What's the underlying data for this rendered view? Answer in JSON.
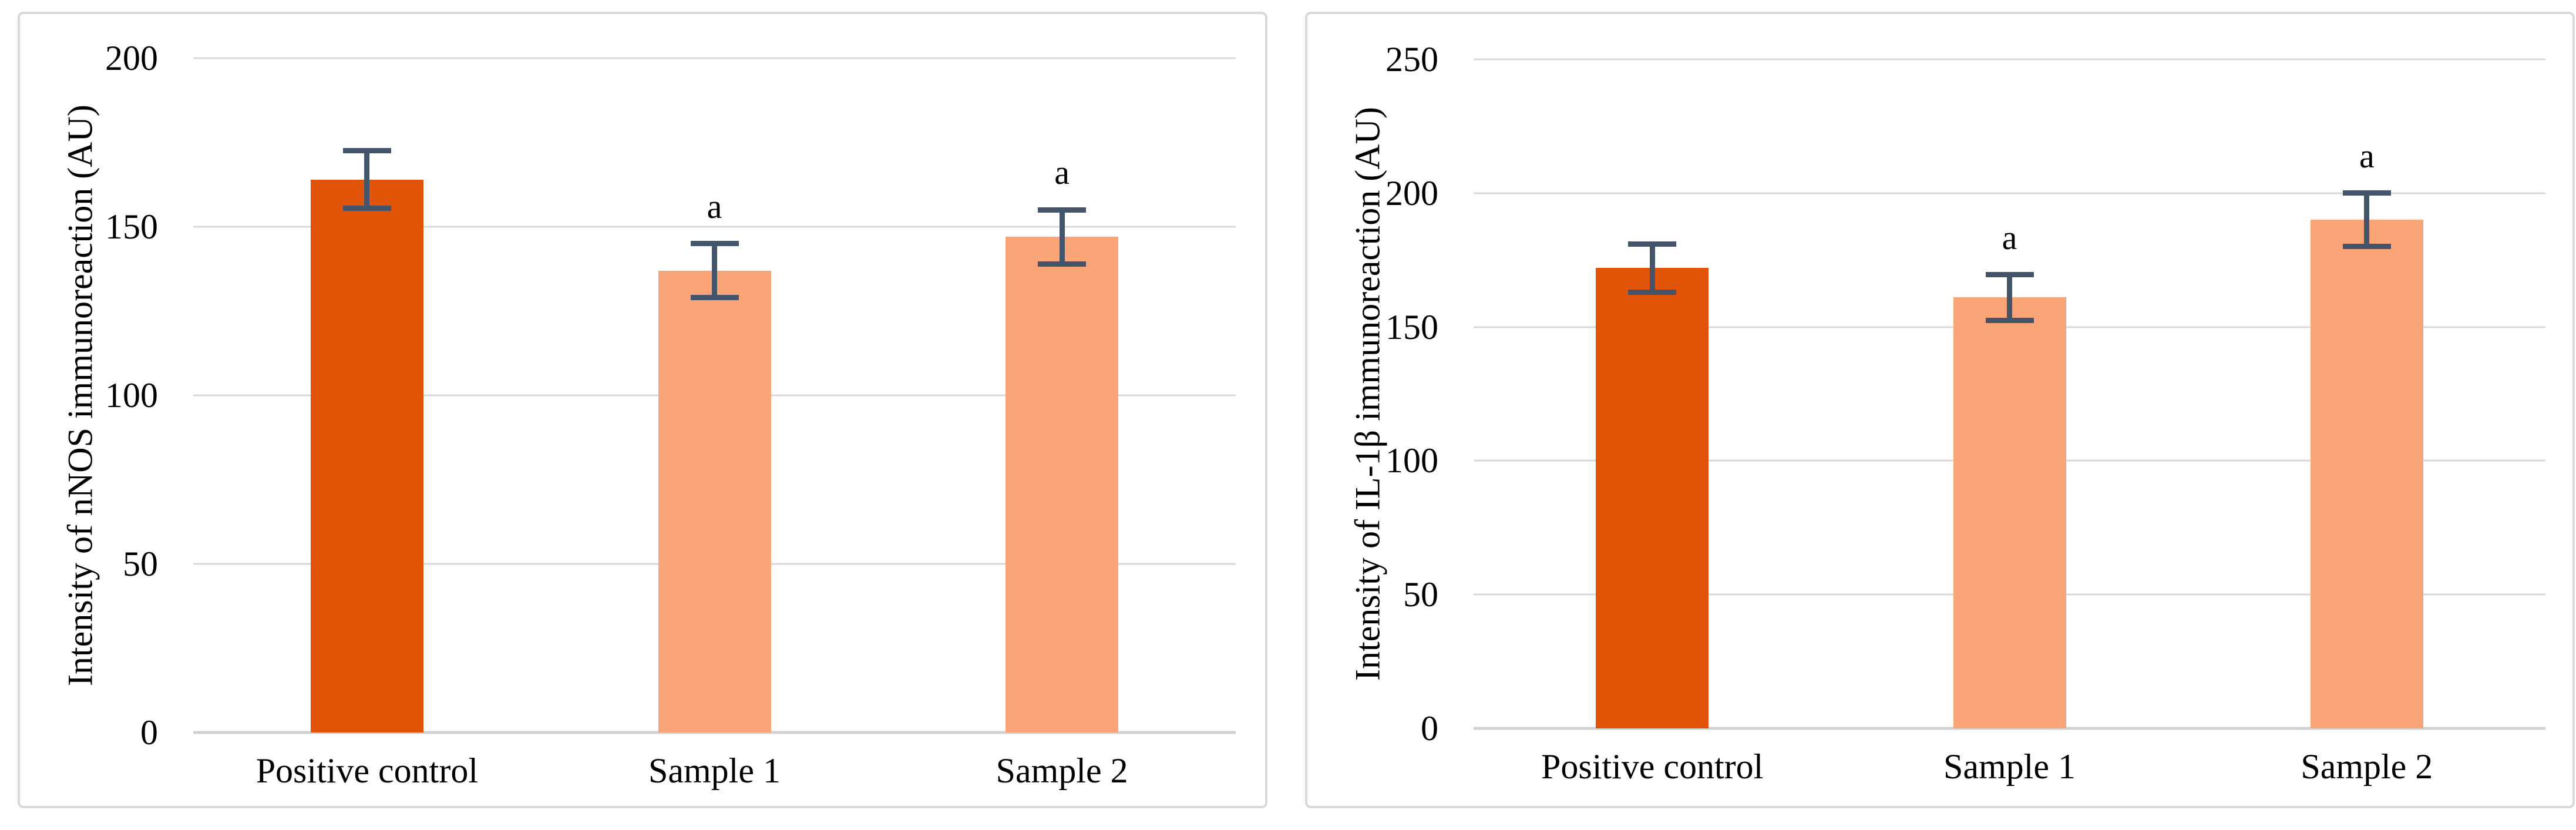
{
  "page": {
    "background": "#FFFFFF"
  },
  "styles": {
    "bar_dark": "#E15306",
    "bar_light": "#FAA477",
    "error_bar": "#44546A",
    "gridline": "#D9D9D9",
    "axis_line": "#D2D2D2",
    "panel_border": "#D9D9D9",
    "text": "#000000"
  },
  "chart_data": [
    {
      "type": "bar",
      "title": "",
      "ylabel": "Intensity of nNOS immunoreaction (AU)",
      "xlabel": "",
      "ylim": [
        0,
        200
      ],
      "yticks": [
        0,
        50,
        100,
        150,
        200
      ],
      "grid": true,
      "legend": false,
      "categories": [
        "Positive control",
        "Sample 1",
        "Sample 2"
      ],
      "values": [
        164,
        137,
        147
      ],
      "errors": [
        8.5,
        8,
        8
      ],
      "sig_labels": [
        "",
        "a",
        "a"
      ],
      "bar_color_keys": [
        "bar_dark",
        "bar_light",
        "bar_light"
      ]
    },
    {
      "type": "bar",
      "title": "",
      "ylabel": "Intensity of IL-1β immunoreaction (AU)",
      "xlabel": "",
      "ylim": [
        0,
        250
      ],
      "yticks": [
        0,
        50,
        100,
        150,
        200,
        250
      ],
      "grid": true,
      "legend": false,
      "categories": [
        "Positive control",
        "Sample 1",
        "Sample 2"
      ],
      "values": [
        172,
        161,
        190
      ],
      "errors": [
        9,
        8.5,
        10
      ],
      "sig_labels": [
        "",
        "a",
        "a"
      ],
      "bar_color_keys": [
        "bar_dark",
        "bar_light",
        "bar_light"
      ]
    }
  ]
}
